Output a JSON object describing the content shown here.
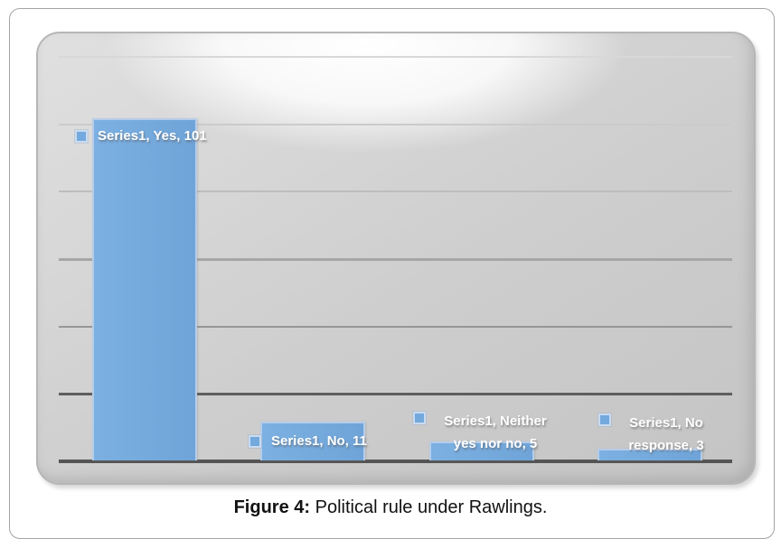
{
  "figure": {
    "caption_prefix": "Figure 4:",
    "caption_suffix": " Political rule under Rawlings."
  },
  "chart_data": {
    "type": "bar",
    "title": "",
    "xlabel": "",
    "ylabel": "",
    "categories": [
      "Yes",
      "No",
      "Neither yes nor no",
      "No response"
    ],
    "series": [
      {
        "name": "Series1",
        "values": [
          101,
          11,
          5,
          3
        ]
      }
    ],
    "ylim": [
      0,
      120
    ],
    "gridline_step": 20,
    "grid": true,
    "axis_tick_labels_visible": false,
    "legend_position": "none",
    "bar_color": "#6FA4D8",
    "bar_color_light": "#7CB0E2",
    "bar_border_color": "#B5CDEA",
    "data_labels": [
      {
        "lines": [
          "Series1, Yes, 101"
        ]
      },
      {
        "lines": [
          "Series1, No, 11"
        ]
      },
      {
        "lines": [
          "Series1, Neither",
          "yes nor no, 5"
        ]
      },
      {
        "lines": [
          "Series1, No",
          "response, 3"
        ]
      }
    ]
  }
}
